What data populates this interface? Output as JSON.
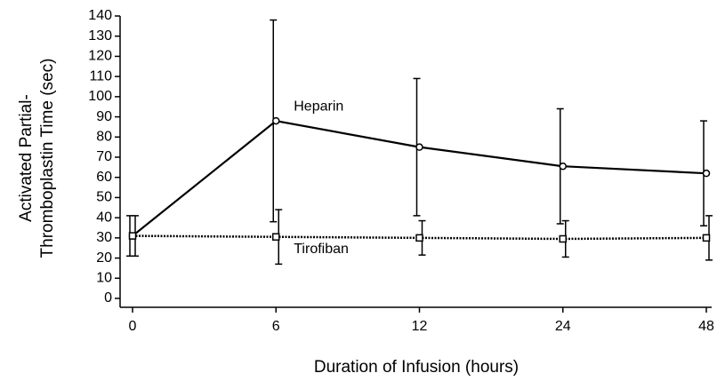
{
  "chart_data": {
    "type": "line",
    "x_label": "Duration of Infusion (hours)",
    "y_label": [
      "Activated Partial-",
      "Thromboplastin Time (sec)"
    ],
    "categories": [
      "0",
      "6",
      "12",
      "24",
      "48"
    ],
    "ylim": [
      0,
      140
    ],
    "yticks": [
      0,
      10,
      20,
      30,
      40,
      50,
      60,
      70,
      80,
      90,
      100,
      110,
      120,
      130,
      140
    ],
    "series": [
      {
        "name": "Heparin",
        "color": "#000000",
        "line_style": "solid",
        "marker": "circle",
        "values": [
          31,
          88,
          75,
          65.5,
          62
        ],
        "errors": [
          10,
          50,
          34,
          28.5,
          26
        ]
      },
      {
        "name": "Tirofiban",
        "color": "#000000",
        "line_style": "dotted",
        "marker": "square",
        "values": [
          31,
          30.5,
          30,
          29.5,
          30
        ],
        "errors": [
          10,
          13.5,
          8.5,
          9,
          11
        ]
      }
    ]
  }
}
